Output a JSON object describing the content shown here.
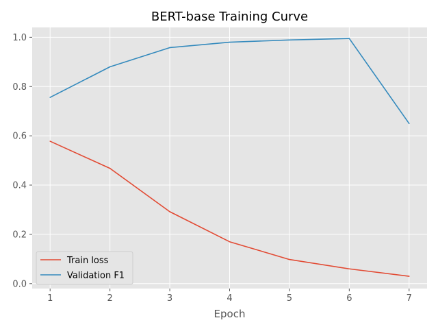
{
  "chart_data": {
    "type": "line",
    "title": "BERT-base Training Curve",
    "xlabel": "Epoch",
    "ylabel": "",
    "x": [
      1,
      2,
      3,
      4,
      5,
      6,
      7
    ],
    "xlim": [
      0.7,
      7.3
    ],
    "ylim": [
      -0.02,
      1.04
    ],
    "xticks": [
      1,
      2,
      3,
      4,
      5,
      6,
      7
    ],
    "yticks": [
      0.0,
      0.2,
      0.4,
      0.6,
      0.8,
      1.0
    ],
    "grid": true,
    "legend_position": "lower-left",
    "series": [
      {
        "name": "Train loss",
        "color": "#E24A33",
        "values": [
          0.578,
          0.468,
          0.292,
          0.17,
          0.098,
          0.06,
          0.03
        ]
      },
      {
        "name": "Validation F1",
        "color": "#348ABD",
        "values": [
          0.756,
          0.88,
          0.958,
          0.98,
          0.989,
          0.995,
          0.65
        ]
      }
    ]
  }
}
